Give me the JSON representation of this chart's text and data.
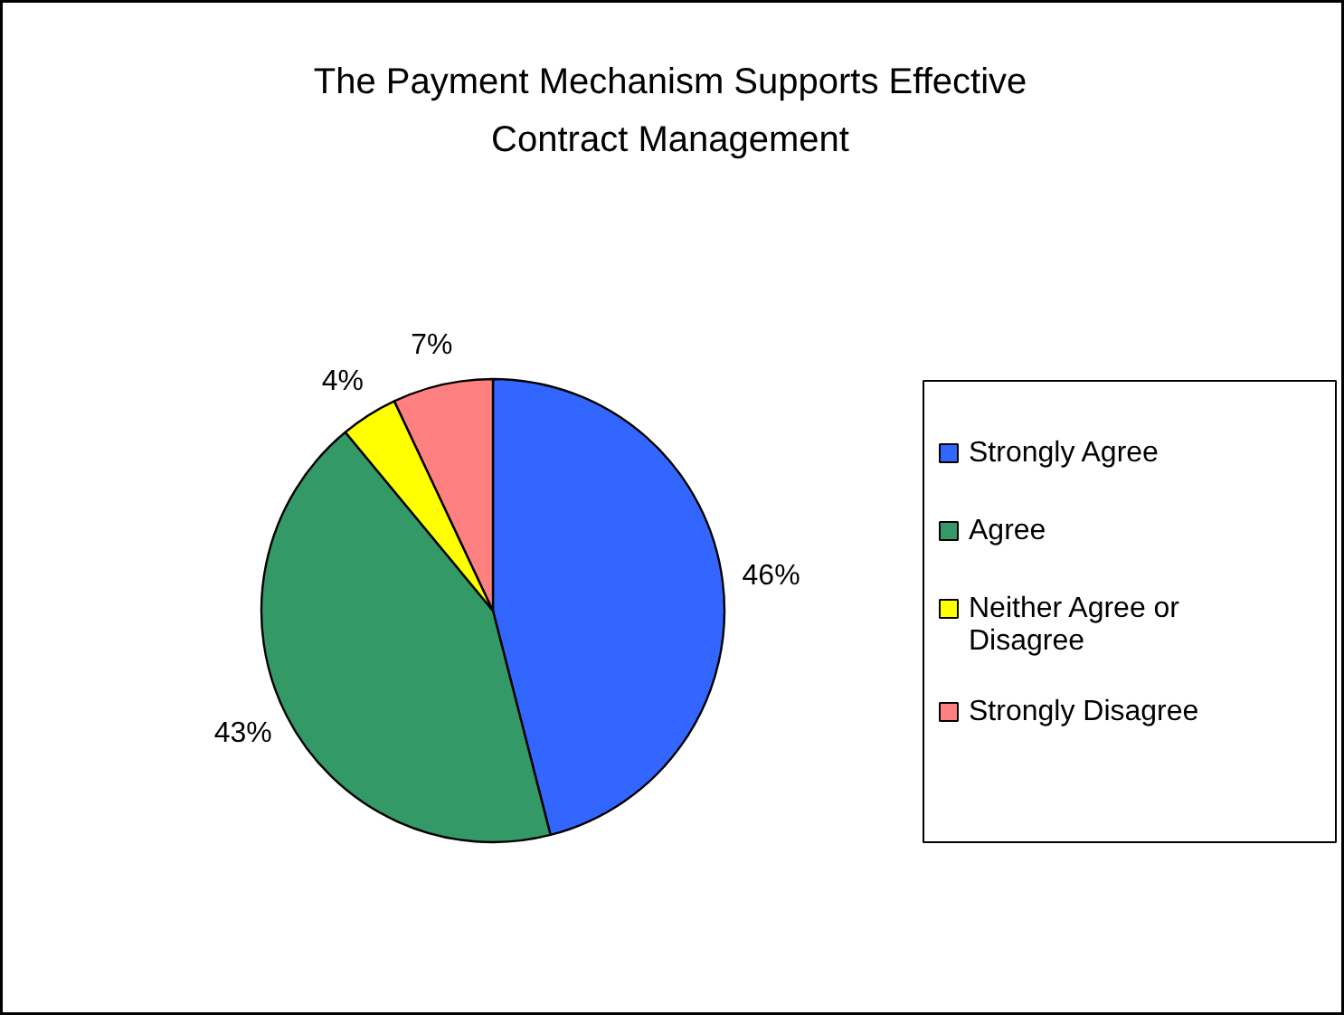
{
  "chart_data": {
    "type": "pie",
    "title": "The Payment Mechanism Supports Effective Contract Management",
    "categories": [
      "Strongly Agree",
      "Agree",
      "Neither Agree or Disagree",
      "Strongly Disagree"
    ],
    "values": [
      46,
      43,
      4,
      7
    ],
    "colors": [
      "#3366ff",
      "#339966",
      "#ffff00",
      "#ff8080"
    ],
    "value_labels": [
      "46%",
      "43%",
      "4%",
      "7%"
    ],
    "legend": "right"
  }
}
